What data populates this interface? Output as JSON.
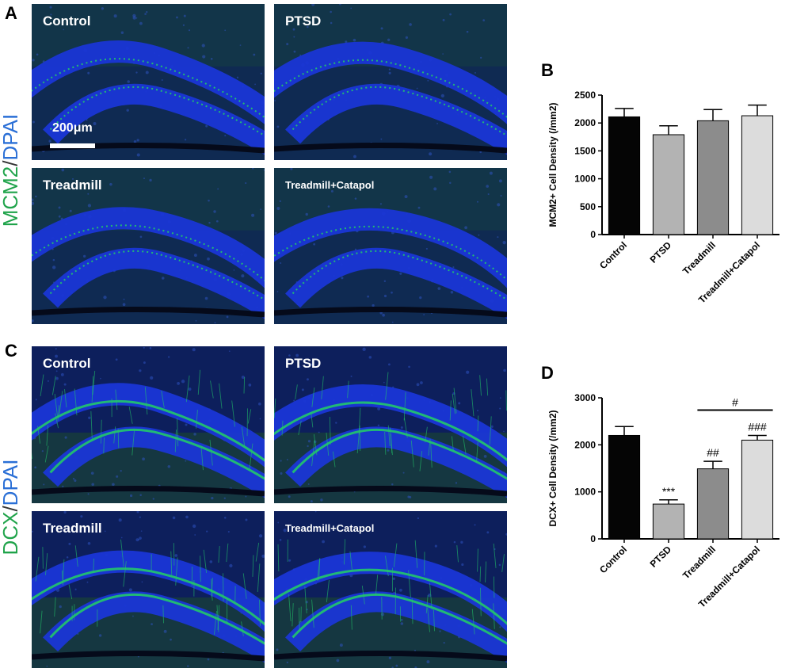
{
  "panels": {
    "A": {
      "letter": "A",
      "ylabel_marker": "MCM2",
      "ylabel_sep": "/",
      "ylabel_stain": "DPAI",
      "scalebar": "200μm",
      "images": [
        {
          "label": "Control"
        },
        {
          "label": "PTSD"
        },
        {
          "label": "Treadmill"
        },
        {
          "label": "Treadmill+Catapol"
        }
      ]
    },
    "C": {
      "letter": "C",
      "ylabel_marker": "DCX",
      "ylabel_sep": "/",
      "ylabel_stain": "DPAI",
      "images": [
        {
          "label": "Control"
        },
        {
          "label": "PTSD"
        },
        {
          "label": "Treadmill"
        },
        {
          "label": "Treadmill+Catapol"
        }
      ]
    },
    "B": {
      "letter": "B"
    },
    "D": {
      "letter": "D"
    }
  },
  "colors": {
    "dapi_blue": "#1a36d6",
    "marker_green": "#22c86a",
    "bar_colors": [
      "#050505",
      "#b3b3b3",
      "#8c8c8c",
      "#dcdcdc"
    ]
  },
  "chart_data": [
    {
      "type": "bar",
      "panel": "B",
      "categories": [
        "Control",
        "PTSD",
        "Treadmill",
        "Treadmill+Catapol"
      ],
      "values": [
        2110,
        1790,
        2040,
        2130
      ],
      "errors": [
        150,
        160,
        200,
        190
      ],
      "ylabel": "MCM2+ Cell Density (/mm2)",
      "ylim": [
        0,
        2500
      ],
      "yticks": [
        0,
        500,
        1000,
        1500,
        2000,
        2500
      ],
      "annotations": []
    },
    {
      "type": "bar",
      "panel": "D",
      "categories": [
        "Control",
        "PTSD",
        "Treadmill",
        "Treadmill+Catapol"
      ],
      "values": [
        2200,
        740,
        1490,
        2100
      ],
      "errors": [
        190,
        90,
        160,
        100
      ],
      "ylabel": "DCX+ Cell Density (/mm2)",
      "ylim": [
        0,
        3000
      ],
      "yticks": [
        0,
        1000,
        2000,
        3000
      ],
      "annotations": [
        "",
        "***",
        "##",
        "###"
      ],
      "bracket": {
        "from": 2,
        "to": 3,
        "label": "#"
      }
    }
  ]
}
